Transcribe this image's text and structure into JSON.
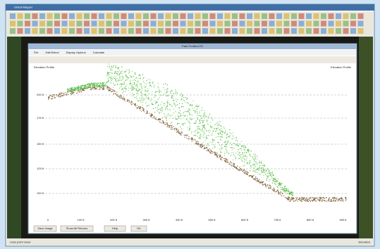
{
  "window": {
    "title": "Global Mapper"
  },
  "dialog": {
    "title": "Path Profile/LOS",
    "menu": [
      "File",
      "Edit/Select",
      "Display Options",
      "Calculate"
    ],
    "info_left": "Elevation Profile",
    "info_right": "Elevation Profile",
    "y_labels": [
      "200 ft",
      "175 ft",
      "150 ft",
      "125 ft",
      "100 ft"
    ],
    "x_labels": [
      "0",
      "100 ft",
      "200 ft",
      "300 ft",
      "400 ft",
      "500 ft",
      "600 ft",
      "700 ft",
      "800 ft",
      "900 ft"
    ],
    "buttons": [
      "Save Image",
      "Show All Returns",
      "Help",
      "OK"
    ]
  },
  "status": {
    "left": "Lidar point cloud",
    "right": "Elevation"
  }
}
